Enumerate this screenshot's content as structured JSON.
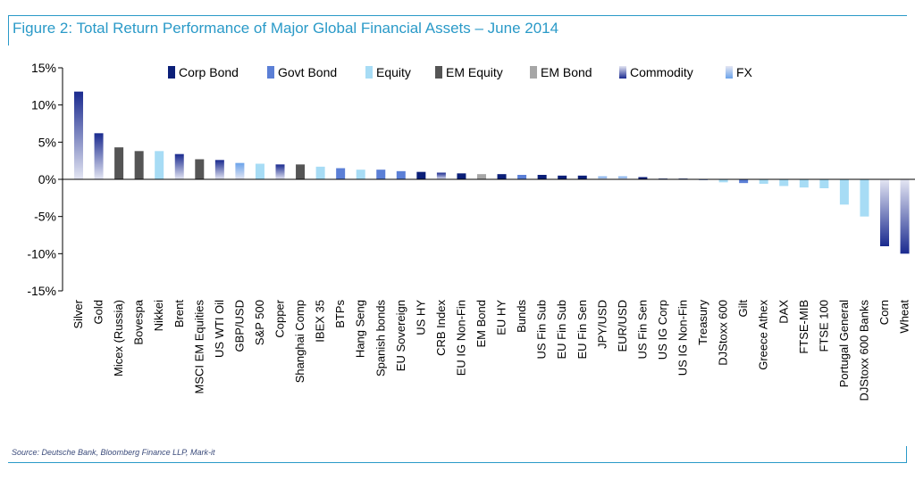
{
  "title": "Figure 2: Total Return Performance of Major Global Financial Assets – June 2014",
  "source": "Source: Deutsche Bank, Bloomberg Finance LLP, Mark-it",
  "chart_data": {
    "type": "bar",
    "ylim": [
      -15,
      15
    ],
    "yticks": [
      15,
      10,
      5,
      0,
      -5,
      -10,
      -15
    ],
    "ytick_labels": [
      "15%",
      "10%",
      "5%",
      "0%",
      "-5%",
      "-10%",
      "-15%"
    ],
    "grid": false,
    "legend_position": "top",
    "legend": [
      {
        "name": "Corp Bond",
        "color": "#0b1f78",
        "style": "solid"
      },
      {
        "name": "Govt Bond",
        "color": "#5b7fd6",
        "style": "solid"
      },
      {
        "name": "Equity",
        "color": "#a7dcf5",
        "style": "solid"
      },
      {
        "name": "EM Equity",
        "color": "#555555",
        "style": "solid"
      },
      {
        "name": "EM Bond",
        "color": "#a6a6a6",
        "style": "solid"
      },
      {
        "name": "Commodity",
        "color": "#1a2a8f",
        "style": "gradient"
      },
      {
        "name": "FX",
        "color": "#6ba3ea",
        "style": "gradient"
      }
    ],
    "categories": [
      "Silver",
      "Gold",
      "Micex (Russia)",
      "Bovespa",
      "Nikkei",
      "Brent",
      "MSCI EM Equities",
      "US WTI Oil",
      "GBP/USD",
      "S&P 500",
      "Copper",
      "Shanghai Comp",
      "IBEX 35",
      "BTPs",
      "Hang Seng",
      "Spanish bonds",
      "EU Sovereign",
      "US HY",
      "CRB Index",
      "EU IG Non-Fin",
      "EM Bond",
      "EU HY",
      "Bunds",
      "US Fin Sub",
      "EU Fin Sub",
      "EU Fin Sen",
      "JPY/USD",
      "EUR/USD",
      "US Fin Sen",
      "US IG Corp",
      "US IG Non-Fin",
      "Treasury",
      "DJStoxx 600",
      "Gilt",
      "Greece Athex",
      "DAX",
      "FTSE-MIB",
      "FTSE 100",
      "Portugal General",
      "DJStoxx 600 Banks",
      "Corn",
      "Wheat"
    ],
    "asset_class": [
      "Commodity",
      "Commodity",
      "EM Equity",
      "EM Equity",
      "Equity",
      "Commodity",
      "EM Equity",
      "Commodity",
      "FX",
      "Equity",
      "Commodity",
      "EM Equity",
      "Equity",
      "Govt Bond",
      "Equity",
      "Govt Bond",
      "Govt Bond",
      "Corp Bond",
      "Commodity",
      "Corp Bond",
      "EM Bond",
      "Corp Bond",
      "Govt Bond",
      "Corp Bond",
      "Corp Bond",
      "Corp Bond",
      "FX",
      "FX",
      "Corp Bond",
      "Corp Bond",
      "Corp Bond",
      "Govt Bond",
      "Equity",
      "Govt Bond",
      "Equity",
      "Equity",
      "Equity",
      "Equity",
      "Equity",
      "Equity",
      "Commodity",
      "Commodity"
    ],
    "values": [
      11.8,
      6.2,
      4.3,
      3.8,
      3.8,
      3.4,
      2.7,
      2.6,
      2.2,
      2.1,
      2.0,
      2.0,
      1.7,
      1.5,
      1.3,
      1.3,
      1.1,
      1.0,
      0.9,
      0.8,
      0.7,
      0.7,
      0.6,
      0.6,
      0.5,
      0.5,
      0.4,
      0.4,
      0.3,
      0.1,
      0.1,
      -0.1,
      -0.4,
      -0.5,
      -0.6,
      -0.9,
      -1.1,
      -1.2,
      -3.4,
      -5.0,
      -9.0,
      -10.0
    ]
  }
}
